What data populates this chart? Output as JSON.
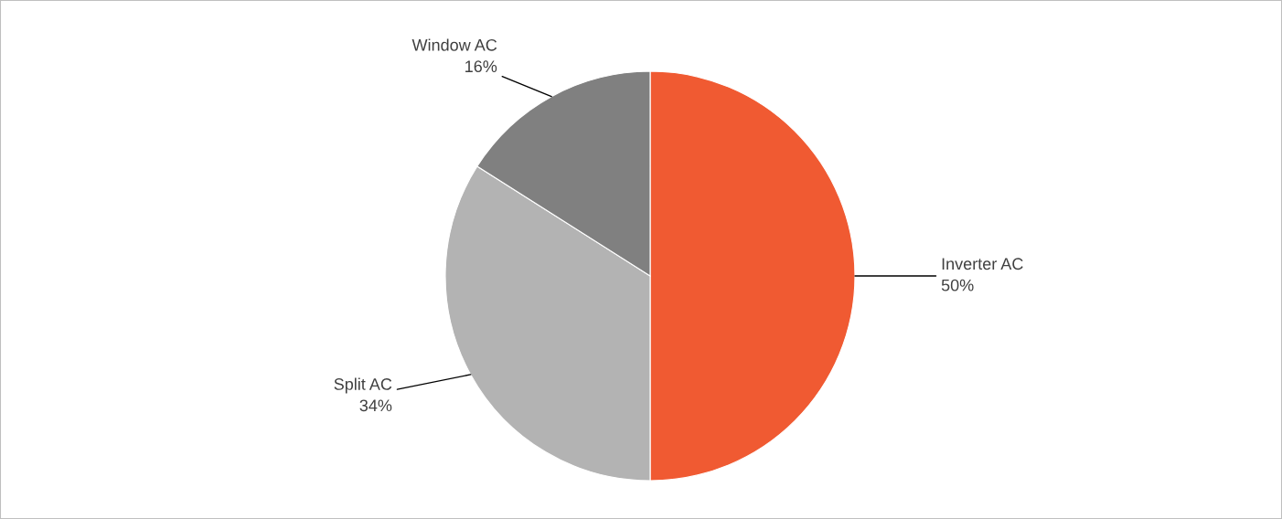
{
  "chart_data": {
    "type": "pie",
    "categories": [
      "Inverter AC",
      "Split AC",
      "Window AC"
    ],
    "values": [
      50,
      34,
      16
    ],
    "value_labels": [
      "50%",
      "34%",
      "16%"
    ],
    "colors": [
      "#f05a32",
      "#b3b3b3",
      "#808080"
    ]
  }
}
